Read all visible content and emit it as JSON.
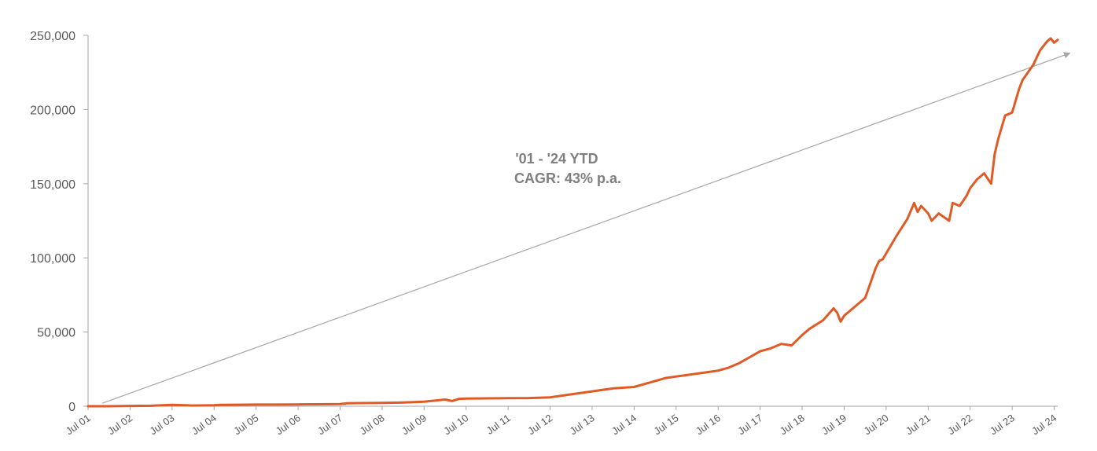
{
  "chart_data": {
    "type": "line",
    "title": "",
    "xlabel": "",
    "ylabel": "",
    "ylim": [
      0,
      250000
    ],
    "y_ticks": [
      0,
      50000,
      100000,
      150000,
      200000,
      250000
    ],
    "y_tick_labels": [
      "0",
      "50,000",
      "100,000",
      "150,000",
      "200,000",
      "250,000"
    ],
    "x_tick_labels": [
      "Jul 01",
      "Jul 02",
      "Jul 03",
      "Jul 04",
      "Jul 05",
      "Jul 06",
      "Jul 07",
      "Jul 08",
      "Jul 09",
      "Jul 10",
      "Jul 11",
      "Jul 12",
      "Jul 13",
      "Jul 14",
      "Jul 15",
      "Jul 16",
      "Jul 17",
      "Jul 18",
      "Jul 19",
      "Jul 20",
      "Jul 21",
      "Jul 22",
      "Jul 23",
      "Jul 24"
    ],
    "grid": false,
    "legend": "none",
    "colors": {
      "line": "#E05A25",
      "axis": "#A6A6A6",
      "arrow": "#A6A6A6",
      "annotation": "#7F7F7F"
    },
    "annotation": {
      "lines": [
        "'01 - '24 YTD",
        "CAGR: 43% p.a."
      ]
    },
    "series": [
      {
        "x": [
          "Jul 01",
          "Jan 02",
          "Jul 02",
          "Jan 03",
          "Jul 03",
          "Sep 03",
          "Jan 04",
          "Jul 04",
          "Sep 04",
          "Jan 05",
          "Jul 05",
          "Jan 06",
          "Jul 06",
          "Jan 07",
          "Jul 07",
          "Sep 07",
          "Jan 08",
          "Jul 08",
          "Jan 09",
          "Jul 09",
          "Jan 10",
          "Mar 10",
          "May 10",
          "Jul 10",
          "Jan 11",
          "Jul 11",
          "Jan 12",
          "Jul 12",
          "Jan 13",
          "Jul 13",
          "Jan 14",
          "Jul 14",
          "Jan 15",
          "Apr 15",
          "Jul 15",
          "Oct 15",
          "Jan 16",
          "Apr 16",
          "Jul 16",
          "Oct 16",
          "Jan 17",
          "Apr 17",
          "Jul 17",
          "Oct 17",
          "Jan 18",
          "Apr 18",
          "Jul 18",
          "Sep 18",
          "Jan 19",
          "Apr 19",
          "May 19",
          "Jun 19",
          "Jul 19",
          "Oct 19",
          "Jan 20",
          "Apr 20",
          "May 20",
          "Jun 20",
          "Jul 20",
          "Oct 20",
          "Jan 21",
          "Mar 21",
          "Apr 21",
          "May 21",
          "Jul 21",
          "Aug 21",
          "Oct 21",
          "Jan 22",
          "Feb 22",
          "Apr 22",
          "Jun 22",
          "Jul 22",
          "Sep 22",
          "Nov 22",
          "Jan 23",
          "Feb 23",
          "Mar 23",
          "May 23",
          "Jul 23",
          "Sep 23",
          "Oct 23",
          "Jan 24",
          "Mar 24",
          "May 24",
          "Jun 24",
          "Jul 24",
          "Aug 24"
        ],
        "y": [
          0,
          0,
          200,
          300,
          900,
          800,
          500,
          700,
          900,
          1000,
          1100,
          1100,
          1200,
          1300,
          1500,
          2000,
          2100,
          2200,
          2500,
          3000,
          4500,
          3500,
          5000,
          5200,
          5300,
          5400,
          5500,
          6000,
          8000,
          10000,
          12000,
          13000,
          17000,
          19000,
          20000,
          21000,
          22000,
          23000,
          24000,
          26000,
          29000,
          33000,
          37000,
          39000,
          42000,
          41000,
          48000,
          52000,
          58000,
          66000,
          63000,
          57000,
          61000,
          67000,
          73000,
          93000,
          98000,
          99000,
          103000,
          115000,
          126000,
          137000,
          131000,
          135000,
          130000,
          125000,
          130000,
          125000,
          137000,
          135000,
          142000,
          147000,
          153000,
          157000,
          150000,
          170000,
          180000,
          196000,
          198000,
          214000,
          220000,
          230000,
          240000,
          246000,
          248000,
          245000,
          247000
        ]
      }
    ],
    "trend_arrow": {
      "from": {
        "x": "Jul 01",
        "y": 2000
      },
      "to": {
        "x": "Jul 24",
        "y": 238000
      }
    }
  }
}
